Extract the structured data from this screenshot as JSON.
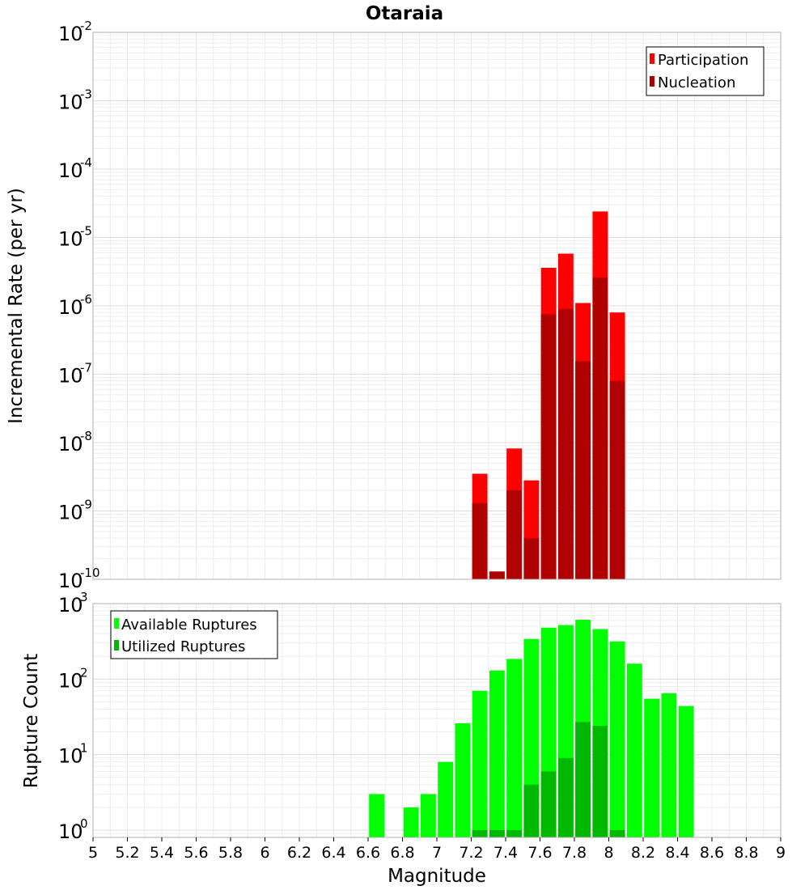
{
  "chart_data": [
    {
      "type": "bar",
      "title": "Otaraia",
      "xlabel": "",
      "ylabel": "Incremental Rate (per yr)",
      "xlim": [
        5,
        9
      ],
      "ylim": [
        1e-10,
        0.01
      ],
      "yscale": "log",
      "ytick_exponents": [
        -10,
        -9,
        -8,
        -7,
        -6,
        -5,
        -4,
        -3,
        -2
      ],
      "grid": true,
      "legend_position": "top-right",
      "bin_width": 0.1,
      "x": [
        7.25,
        7.35,
        7.45,
        7.55,
        7.65,
        7.75,
        7.85,
        7.95,
        8.05
      ],
      "series": [
        {
          "name": "Participation",
          "color": "#ff0000",
          "values": [
            3.5e-09,
            1.3e-10,
            8.2e-09,
            2.8e-09,
            3.6e-06,
            5.8e-06,
            1.1e-06,
            2.4e-05,
            8e-07
          ]
        },
        {
          "name": "Nucleation",
          "color": "#b00000",
          "values": [
            1.3e-09,
            1.3e-10,
            2e-09,
            4e-10,
            7.5e-07,
            9e-07,
            1.55e-07,
            2.6e-06,
            8e-08
          ]
        }
      ]
    },
    {
      "type": "bar",
      "title": "",
      "xlabel": "Magnitude",
      "ylabel": "Rupture Count",
      "xlim": [
        5,
        9
      ],
      "ylim": [
        0.8,
        1000
      ],
      "yscale": "log",
      "ytick_exponents": [
        0,
        1,
        2,
        3
      ],
      "xticks": [
        "5",
        "5.2",
        "5.4",
        "5.6",
        "5.8",
        "6",
        "6.2",
        "6.4",
        "6.6",
        "6.8",
        "7",
        "7.2",
        "7.4",
        "7.6",
        "7.8",
        "8",
        "8.2",
        "8.4",
        "8.6",
        "8.8",
        "9"
      ],
      "grid": true,
      "legend_position": "top-left",
      "bin_width": 0.1,
      "series": [
        {
          "name": "Available Ruptures",
          "color": "#00ff00",
          "x": [
            6.65,
            6.85,
            6.95,
            7.05,
            7.15,
            7.25,
            7.35,
            7.45,
            7.55,
            7.65,
            7.75,
            7.85,
            7.95,
            8.05,
            8.15,
            8.25,
            8.35,
            8.45
          ],
          "values": [
            3,
            2,
            3,
            8,
            26,
            70,
            130,
            185,
            340,
            480,
            520,
            610,
            460,
            315,
            160,
            55,
            65,
            44
          ]
        },
        {
          "name": "Utilized Ruptures",
          "color": "#00b800",
          "x": [
            7.25,
            7.35,
            7.45,
            7.55,
            7.65,
            7.75,
            7.85,
            7.95,
            8.05
          ],
          "values": [
            1,
            1,
            1,
            4,
            6,
            9,
            27,
            24,
            1
          ]
        }
      ]
    }
  ]
}
